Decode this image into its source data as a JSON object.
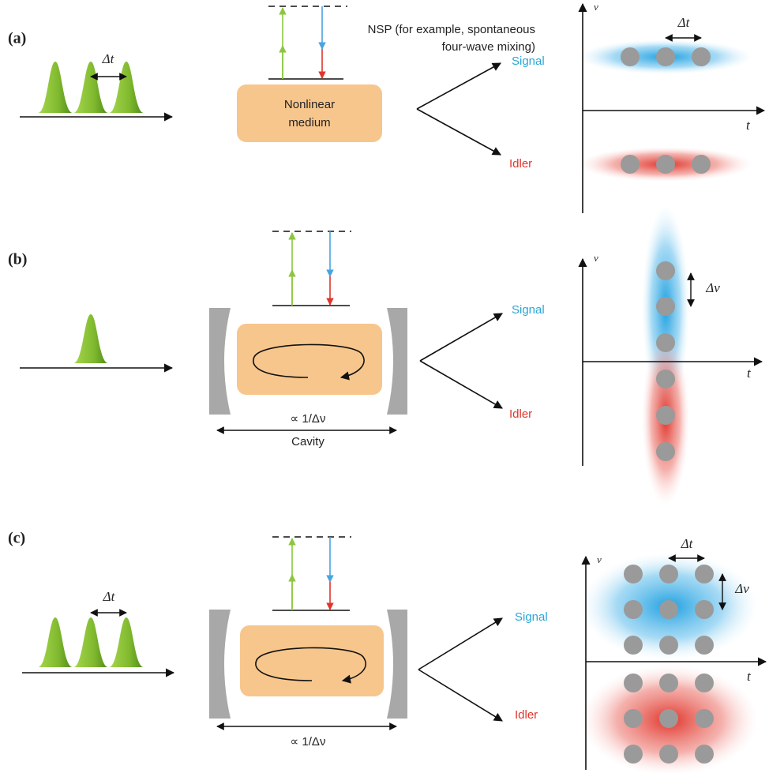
{
  "panels": [
    {
      "label": "(a)",
      "pulse_spacing": "Δt",
      "process_note": [
        "NSP (for example, spontaneous",
        "four-wave mixing)"
      ],
      "medium": [
        "Nonlinear",
        "medium"
      ],
      "signal": "Signal",
      "idler": "Idler",
      "axis_y": "ν",
      "axis_x": "t",
      "plot_spacing": "Δt"
    },
    {
      "label": "(b)",
      "cavity_length": "∝ 1/Δν",
      "cavity": "Cavity",
      "signal": "Signal",
      "idler": "Idler",
      "axis_y": "ν",
      "axis_x": "t",
      "plot_spacing": "Δν"
    },
    {
      "label": "(c)",
      "pulse_spacing": "Δt",
      "cavity_length": "∝ 1/Δν",
      "signal": "Signal",
      "idler": "Idler",
      "axis_y": "ν",
      "axis_x": "t",
      "plot_spacing_t": "Δt",
      "plot_spacing_nu": "Δν"
    }
  ]
}
